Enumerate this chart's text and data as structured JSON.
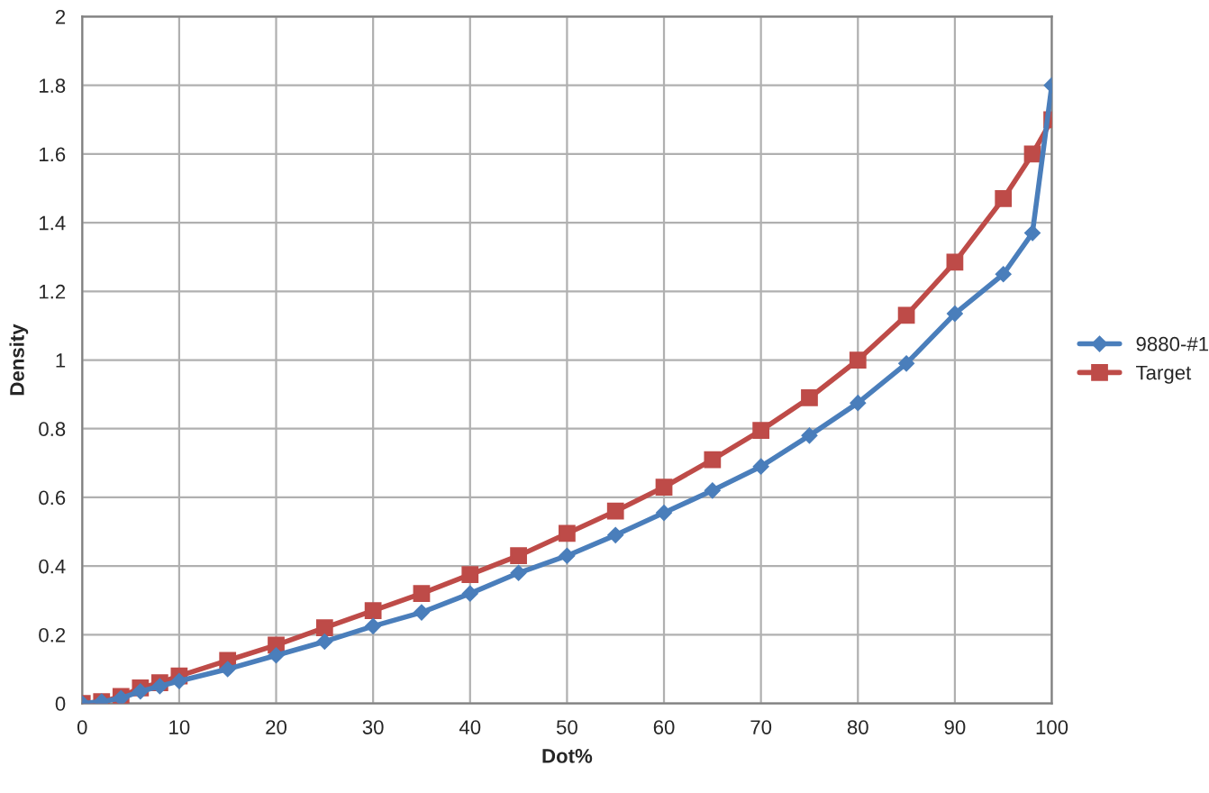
{
  "chart_data": {
    "type": "line",
    "xlabel": "Dot%",
    "ylabel": "Density",
    "x": [
      0,
      2,
      4,
      6,
      8,
      10,
      15,
      20,
      25,
      30,
      35,
      40,
      45,
      50,
      55,
      60,
      65,
      70,
      75,
      80,
      85,
      90,
      95,
      98,
      100
    ],
    "series": [
      {
        "name": "9880-#1",
        "color": "#4a7ebb",
        "marker": "diamond",
        "values": [
          0,
          0.005,
          0.015,
          0.035,
          0.05,
          0.065,
          0.1,
          0.14,
          0.18,
          0.225,
          0.265,
          0.32,
          0.38,
          0.43,
          0.49,
          0.555,
          0.62,
          0.69,
          0.78,
          0.875,
          0.99,
          1.135,
          1.25,
          1.37,
          1.8
        ]
      },
      {
        "name": "Target",
        "color": "#be4b48",
        "marker": "square",
        "values": [
          0,
          0.005,
          0.02,
          0.045,
          0.06,
          0.08,
          0.125,
          0.17,
          0.22,
          0.27,
          0.32,
          0.375,
          0.43,
          0.495,
          0.56,
          0.63,
          0.71,
          0.795,
          0.89,
          1.0,
          1.13,
          1.285,
          1.47,
          1.6,
          1.7
        ]
      }
    ],
    "xlim": [
      0,
      100
    ],
    "xticks": [
      0,
      10,
      20,
      30,
      40,
      50,
      60,
      70,
      80,
      90,
      100
    ],
    "ylim": [
      0,
      2
    ],
    "yticks": [
      0,
      0.2,
      0.4,
      0.6,
      0.8,
      1,
      1.2,
      1.4,
      1.6,
      1.8,
      2
    ],
    "grid": true,
    "legend": "right",
    "line_style": "solid"
  }
}
